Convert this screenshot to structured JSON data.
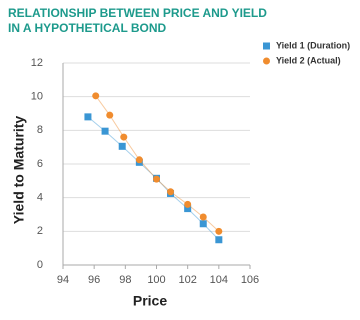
{
  "chart_data": {
    "type": "line",
    "title": [
      "RELATIONSHIP BETWEEN PRICE AND YIELD",
      "IN A HYPOTHETICAL BOND"
    ],
    "xlabel": "Price",
    "ylabel": "Yield to Maturity",
    "xlim": [
      94,
      106
    ],
    "xticks": [
      94,
      96,
      98,
      100,
      102,
      104,
      106
    ],
    "ylim": [
      0,
      12
    ],
    "yticks": [
      0,
      2,
      4,
      6,
      8,
      10,
      12
    ],
    "grid": true,
    "legend": "upper right",
    "series": [
      {
        "name": "Yield 1 (Duration)",
        "color": "#3a96d4",
        "marker": "square",
        "x": [
          95.6,
          96.7,
          97.8,
          98.9,
          100,
          100.9,
          102,
          103,
          104
        ],
        "values": [
          8.8,
          7.95,
          7.05,
          6.1,
          5.15,
          4.25,
          3.35,
          2.45,
          1.5
        ]
      },
      {
        "name": "Yield 2 (Actual)",
        "color": "#f08c2e",
        "marker": "circle",
        "x": [
          96.1,
          97,
          97.9,
          98.9,
          100,
          100.9,
          102,
          103,
          104
        ],
        "values": [
          10.05,
          8.9,
          7.6,
          6.25,
          5.1,
          4.35,
          3.6,
          2.85,
          2.0
        ]
      }
    ]
  }
}
